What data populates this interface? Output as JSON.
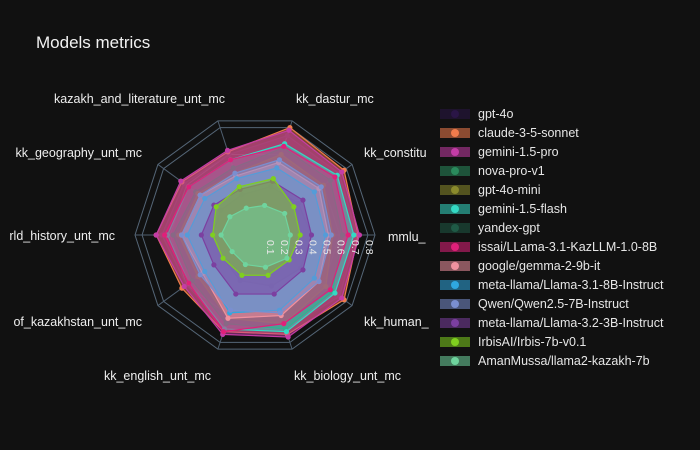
{
  "chart_data": {
    "type": "radar",
    "title": "Models metrics",
    "axes": [
      "mmlu_translated_kk",
      "kk_constitution_mc",
      "kk_dastur_mc",
      "kazakh_and_literature_unt_mc",
      "kk_geography_unt_mc",
      "kk_world_history_unt_mc",
      "kk_history_of_kazakhstan_unt_mc",
      "kk_english_unt_mc",
      "kk_biology_unt_mc",
      "kk_human_society_rights_unt_mc"
    ],
    "axis_labels_visible": [
      "mmlu_",
      "kk_constitu",
      "kk_dastur_mc",
      "kazakh_and_literature_unt_mc",
      "kk_geography_unt_mc",
      "rld_history_unt_mc",
      "of_kazakhstan_unt_mc",
      "kk_english_unt_mc",
      "kk_biology_unt_mc",
      "kk_human_"
    ],
    "radial_range": [
      0,
      0.85
    ],
    "radial_ticks": [
      "0.1",
      "0.2",
      "0.3",
      "0.4",
      "0.5",
      "0.6",
      "0.7",
      "0.8"
    ],
    "legend_position": "right",
    "series": [
      {
        "name": "gpt-4o",
        "color": "#2a1546",
        "values": [
          0.72,
          0.74,
          0.74,
          0.6,
          0.62,
          0.66,
          0.6,
          0.68,
          0.7,
          0.74
        ]
      },
      {
        "name": "claude-3-5-sonnet",
        "color": "#f07c4c",
        "values": [
          0.73,
          0.78,
          0.8,
          0.62,
          0.64,
          0.7,
          0.64,
          0.72,
          0.74,
          0.78
        ]
      },
      {
        "name": "gemini-1.5-pro",
        "color": "#c43ca6",
        "values": [
          0.74,
          0.76,
          0.78,
          0.63,
          0.65,
          0.7,
          0.62,
          0.74,
          0.76,
          0.76
        ]
      },
      {
        "name": "nova-pro-v1",
        "color": "#2a8a5c",
        "values": [
          0.62,
          0.66,
          0.65,
          0.5,
          0.52,
          0.58,
          0.55,
          0.66,
          0.7,
          0.68
        ]
      },
      {
        "name": "gpt-4o-mini",
        "color": "#8a8a2c",
        "values": [
          0.55,
          0.6,
          0.6,
          0.46,
          0.5,
          0.54,
          0.5,
          0.62,
          0.66,
          0.62
        ]
      },
      {
        "name": "gemini-1.5-flash",
        "color": "#34d9c4",
        "values": [
          0.7,
          0.72,
          0.68,
          0.56,
          0.58,
          0.62,
          0.58,
          0.7,
          0.72,
          0.7
        ]
      },
      {
        "name": "yandex-gpt",
        "color": "#1f5a46",
        "values": [
          0.4,
          0.38,
          0.36,
          0.3,
          0.3,
          0.3,
          0.28,
          0.34,
          0.38,
          0.4
        ]
      },
      {
        "name": "issai/LLama-3.1-KazLLM-1.0-8B",
        "color": "#e0207a",
        "values": [
          0.66,
          0.7,
          0.66,
          0.56,
          0.58,
          0.64,
          0.58,
          0.72,
          0.66,
          0.66
        ]
      },
      {
        "name": "google/gemma-2-9b-it",
        "color": "#f092a0",
        "values": [
          0.52,
          0.56,
          0.54,
          0.44,
          0.48,
          0.52,
          0.46,
          0.62,
          0.6,
          0.56
        ]
      },
      {
        "name": "meta-llama/Llama-3.1-8B-Instruct",
        "color": "#2fa8e0",
        "values": [
          0.5,
          0.52,
          0.5,
          0.42,
          0.44,
          0.48,
          0.44,
          0.58,
          0.56,
          0.52
        ]
      },
      {
        "name": "Qwen/Qwen2.5-7B-Instruct",
        "color": "#7a8fd0",
        "values": [
          0.54,
          0.58,
          0.56,
          0.46,
          0.48,
          0.52,
          0.48,
          0.56,
          0.58,
          0.56
        ]
      },
      {
        "name": "meta-llama/Llama-3.2-3B-Instruct",
        "color": "#7c3fa0",
        "values": [
          0.4,
          0.42,
          0.4,
          0.34,
          0.36,
          0.38,
          0.36,
          0.44,
          0.44,
          0.42
        ]
      },
      {
        "name": "IrbisAI/Irbis-7b-v0.1",
        "color": "#7fcf1f",
        "values": [
          0.32,
          0.34,
          0.42,
          0.36,
          0.34,
          0.3,
          0.28,
          0.3,
          0.3,
          0.3
        ]
      },
      {
        "name": "AmanMussa/llama2-kazakh-7b",
        "color": "#6fd49e",
        "values": [
          0.25,
          0.26,
          0.22,
          0.2,
          0.22,
          0.24,
          0.2,
          0.22,
          0.24,
          0.28
        ]
      }
    ]
  }
}
